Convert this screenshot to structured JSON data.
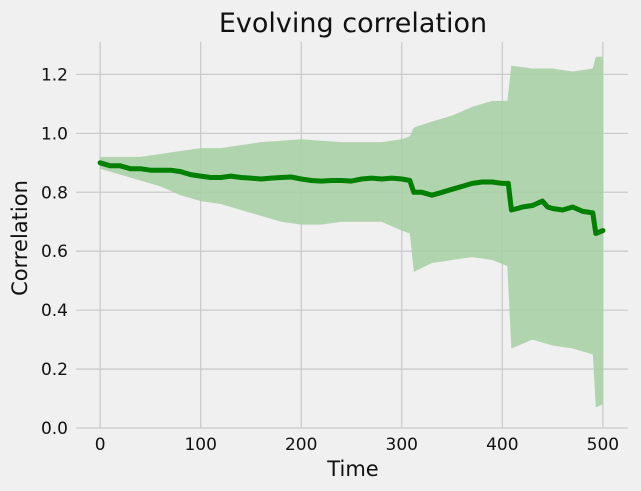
{
  "chart_data": {
    "type": "line",
    "title": "Evolving correlation",
    "xlabel": "Time",
    "ylabel": "Correlation",
    "xlim": [
      -24,
      525
    ],
    "ylim": [
      0.0,
      1.31
    ],
    "x_ticks": [
      0,
      100,
      200,
      300,
      400,
      500
    ],
    "x_tick_labels": [
      "0",
      "100",
      "200",
      "300",
      "400",
      "500"
    ],
    "y_ticks": [
      0.0,
      0.2,
      0.4,
      0.6,
      0.8,
      1.0,
      1.2
    ],
    "y_tick_labels": [
      "0.0",
      "0.2",
      "0.4",
      "0.6",
      "0.8",
      "1.0",
      "1.2"
    ],
    "grid": true,
    "legend": "none",
    "colors": {
      "line": "#008000",
      "band": "#a9d0a5",
      "background": "#f0f0f0",
      "grid": "#cbcbcb"
    },
    "series": [
      {
        "kind": "line",
        "points": [
          [
            0,
            0.9
          ],
          [
            10,
            0.89
          ],
          [
            20,
            0.89
          ],
          [
            30,
            0.88
          ],
          [
            40,
            0.88
          ],
          [
            50,
            0.875
          ],
          [
            60,
            0.875
          ],
          [
            70,
            0.875
          ],
          [
            80,
            0.87
          ],
          [
            90,
            0.86
          ],
          [
            100,
            0.855
          ],
          [
            110,
            0.85
          ],
          [
            120,
            0.85
          ],
          [
            130,
            0.855
          ],
          [
            140,
            0.85
          ],
          [
            150,
            0.848
          ],
          [
            160,
            0.845
          ],
          [
            170,
            0.848
          ],
          [
            180,
            0.85
          ],
          [
            190,
            0.852
          ],
          [
            200,
            0.845
          ],
          [
            210,
            0.84
          ],
          [
            220,
            0.838
          ],
          [
            230,
            0.84
          ],
          [
            240,
            0.84
          ],
          [
            250,
            0.838
          ],
          [
            260,
            0.845
          ],
          [
            270,
            0.848
          ],
          [
            280,
            0.845
          ],
          [
            290,
            0.848
          ],
          [
            300,
            0.845
          ],
          [
            308,
            0.84
          ],
          [
            312,
            0.8
          ],
          [
            320,
            0.8
          ],
          [
            330,
            0.79
          ],
          [
            340,
            0.8
          ],
          [
            350,
            0.81
          ],
          [
            360,
            0.82
          ],
          [
            370,
            0.83
          ],
          [
            380,
            0.835
          ],
          [
            390,
            0.835
          ],
          [
            400,
            0.83
          ],
          [
            406,
            0.83
          ],
          [
            409,
            0.74
          ],
          [
            415,
            0.745
          ],
          [
            420,
            0.75
          ],
          [
            430,
            0.755
          ],
          [
            440,
            0.77
          ],
          [
            445,
            0.75
          ],
          [
            450,
            0.745
          ],
          [
            460,
            0.74
          ],
          [
            470,
            0.75
          ],
          [
            480,
            0.735
          ],
          [
            490,
            0.73
          ],
          [
            493,
            0.66
          ],
          [
            500,
            0.67
          ]
        ]
      },
      {
        "kind": "band",
        "x": [
          0,
          20,
          40,
          60,
          80,
          100,
          120,
          140,
          160,
          180,
          200,
          220,
          240,
          260,
          280,
          300,
          308,
          312,
          330,
          350,
          370,
          390,
          405,
          409,
          430,
          450,
          470,
          490,
          493,
          500
        ],
        "upper": [
          0.92,
          0.92,
          0.92,
          0.93,
          0.94,
          0.95,
          0.95,
          0.96,
          0.97,
          0.975,
          0.98,
          0.975,
          0.97,
          0.97,
          0.97,
          0.98,
          0.99,
          1.02,
          1.04,
          1.06,
          1.09,
          1.11,
          1.11,
          1.23,
          1.22,
          1.22,
          1.21,
          1.22,
          1.26,
          1.26
        ],
        "lower": [
          0.88,
          0.86,
          0.84,
          0.82,
          0.79,
          0.77,
          0.76,
          0.74,
          0.72,
          0.7,
          0.69,
          0.69,
          0.7,
          0.7,
          0.7,
          0.67,
          0.66,
          0.53,
          0.56,
          0.57,
          0.58,
          0.57,
          0.55,
          0.27,
          0.3,
          0.28,
          0.27,
          0.25,
          0.07,
          0.08
        ]
      }
    ]
  }
}
